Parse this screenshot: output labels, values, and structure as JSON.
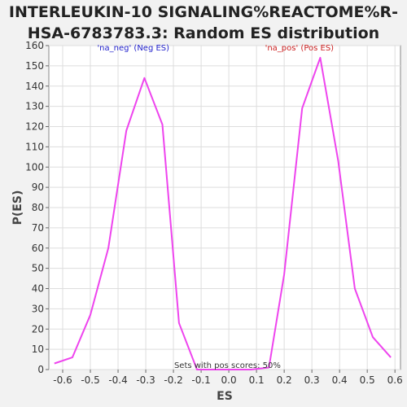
{
  "chart_data": {
    "type": "line",
    "title_line1": "INTERLEUKIN-10 SIGNALING%REACTOME%R-",
    "title_line2": "HSA-6783783.3: Random ES distribution",
    "xlabel": "ES",
    "ylabel": "P(ES)",
    "xlim": [
      -0.65,
      0.62
    ],
    "ylim": [
      0,
      160
    ],
    "x_ticks": [
      -0.6,
      -0.5,
      -0.4,
      -0.3,
      -0.2,
      -0.1,
      0.0,
      0.1,
      0.2,
      0.3,
      0.4,
      0.5,
      0.6
    ],
    "x_tick_labels": [
      "-0.6",
      "-0.5",
      "-0.4",
      "-0.3",
      "-0.2",
      "-0.1",
      "0.0",
      "0.1",
      "0.2",
      "0.3",
      "0.4",
      "0.5",
      "0.6"
    ],
    "y_ticks": [
      0,
      10,
      20,
      30,
      40,
      50,
      60,
      70,
      80,
      90,
      100,
      110,
      120,
      130,
      140,
      150,
      160
    ],
    "y_tick_labels": [
      "0",
      "10",
      "20",
      "30",
      "40",
      "50",
      "60",
      "70",
      "80",
      "90",
      "100",
      "110",
      "120",
      "130",
      "140",
      "150",
      "160"
    ],
    "grid": true,
    "series": [
      {
        "color": "#ee44ee",
        "x": [
          -0.63,
          -0.565,
          -0.5,
          -0.435,
          -0.37,
          -0.305,
          -0.24,
          -0.18,
          -0.115,
          -0.05,
          0.015,
          0.08,
          0.145,
          0.2,
          0.265,
          0.33,
          0.395,
          0.455,
          0.52,
          0.585
        ],
        "y": [
          3,
          6,
          27,
          60,
          118,
          144,
          121,
          23,
          0,
          0,
          0,
          0,
          1,
          47,
          129,
          154,
          103,
          40,
          16,
          6
        ]
      }
    ],
    "annotations": [
      {
        "text": "'na_neg' (Neg ES)",
        "x": -0.345,
        "y": 157.5,
        "color": "#2222cc"
      },
      {
        "text": "'na_pos' (Pos ES)",
        "x": 0.255,
        "y": 157.5,
        "color": "#cc2222"
      },
      {
        "text": "Sets with pos scores: 50%",
        "x": -0.005,
        "y": 0.8,
        "color": "#333333"
      }
    ]
  }
}
